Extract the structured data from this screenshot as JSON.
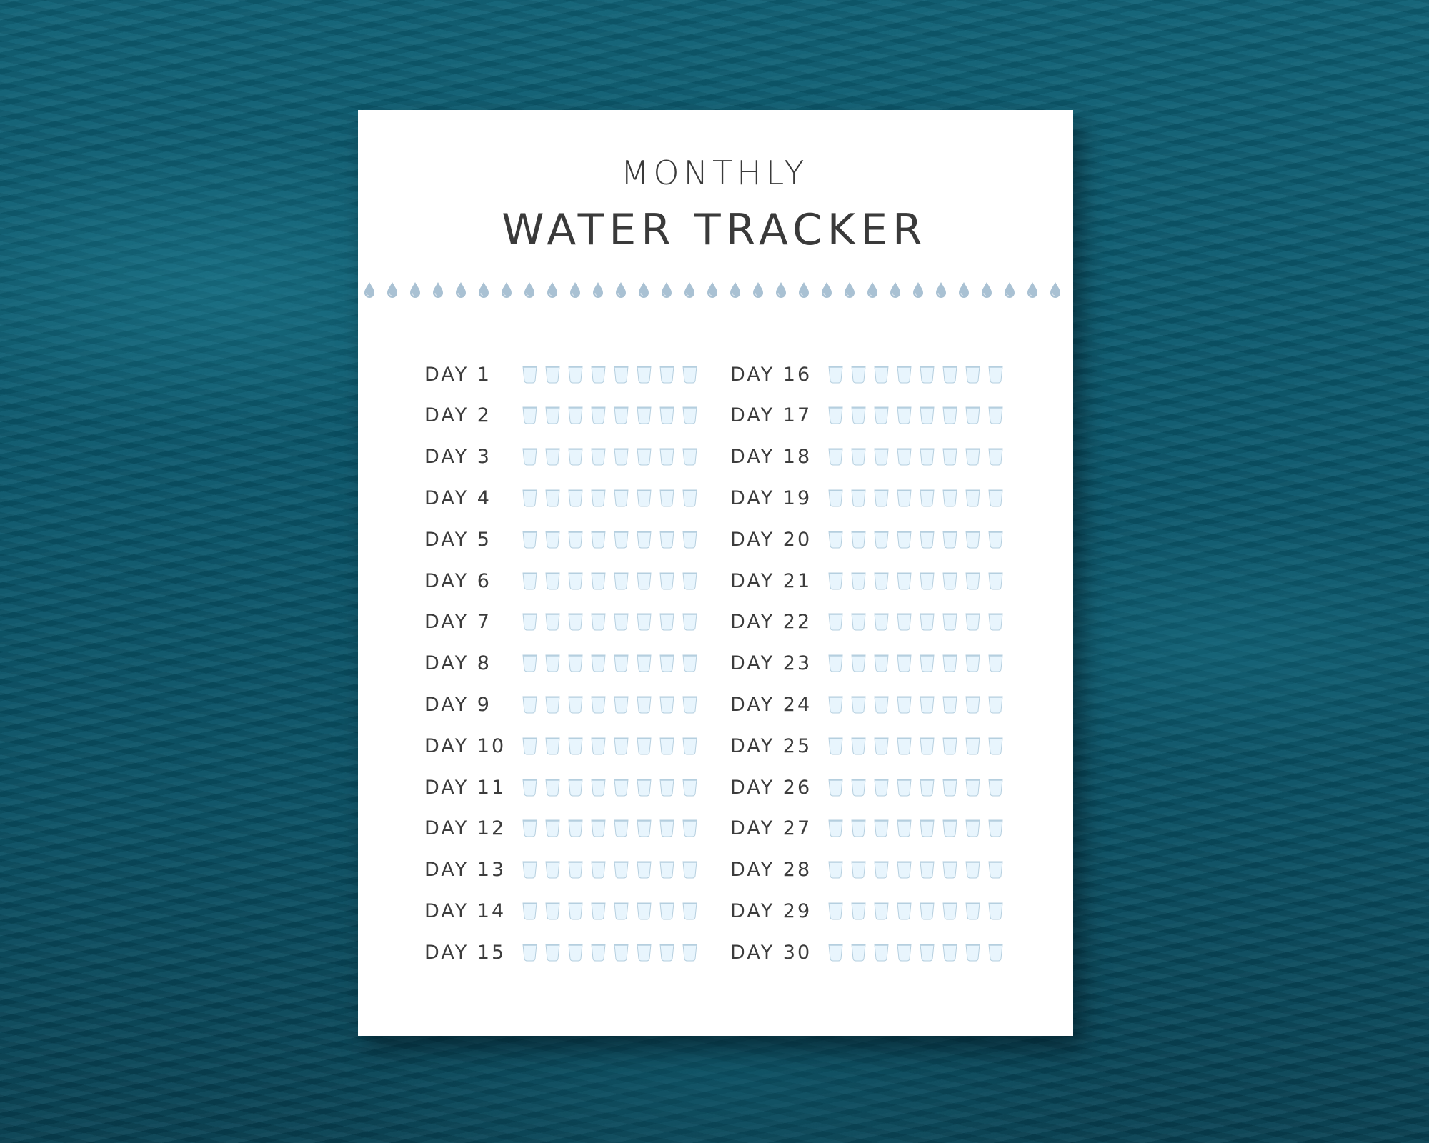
{
  "title": {
    "line1": "MONTHLY",
    "line2": "WATER TRACKER"
  },
  "decor": {
    "drop_icon": "water-drop-icon",
    "drop_count": 32,
    "drop_color": "#a9c1d3"
  },
  "cup": {
    "icon": "water-glass-icon",
    "per_day": 8,
    "fill_color": "#e8f5fd",
    "stroke_color": "#b5cfdf"
  },
  "days_left": [
    "DAY 1",
    "DAY 2",
    "DAY 3",
    "DAY 4",
    "DAY 5",
    "DAY 6",
    "DAY 7",
    "DAY 8",
    "DAY 9",
    "DAY 10",
    "DAY 11",
    "DAY 12",
    "DAY 13",
    "DAY 14",
    "DAY 15"
  ],
  "days_right": [
    "DAY 16",
    "DAY 17",
    "DAY 18",
    "DAY 19",
    "DAY 20",
    "DAY 21",
    "DAY 22",
    "DAY 23",
    "DAY 24",
    "DAY 25",
    "DAY 26",
    "DAY 27",
    "DAY 28",
    "DAY 29",
    "DAY 30"
  ]
}
